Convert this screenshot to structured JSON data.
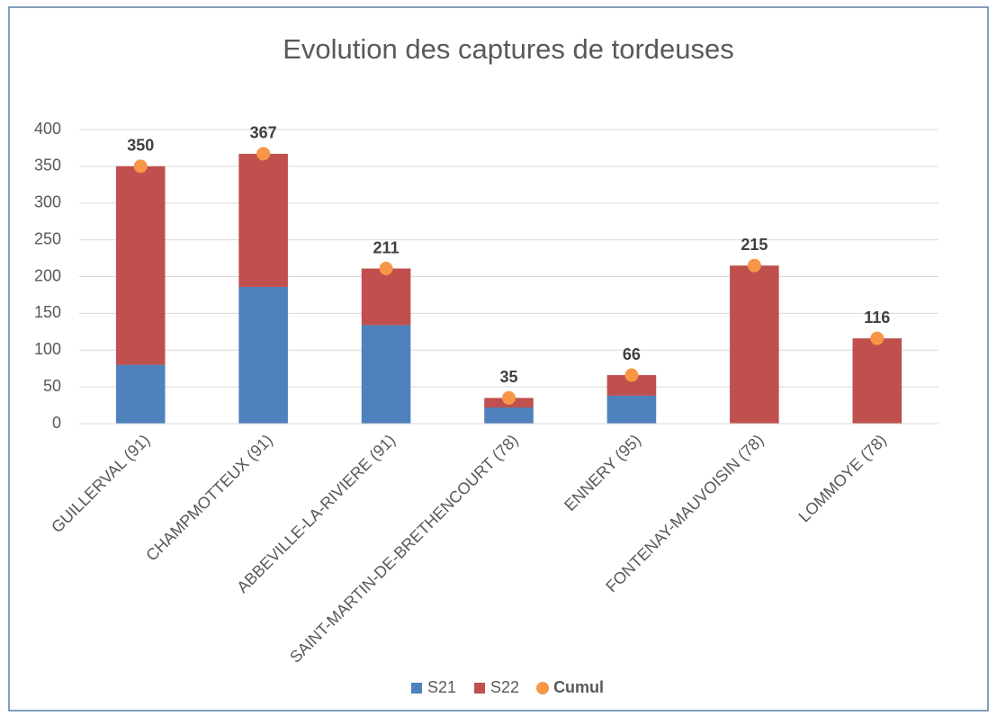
{
  "chart_data": {
    "type": "bar",
    "stacked": true,
    "title": "Evolution des captures de tordeuses",
    "categories": [
      "GUILLERVAL (91)",
      "CHAMPMOTTEUX (91)",
      "ABBEVILLE-LA-RIVIERE (91)",
      "SAINT-MARTIN-DE-BRETHENCOURT (78)",
      "ENNERY (95)",
      "FONTENAY-MAUVOISIN (78)",
      "LOMMOYE (78)"
    ],
    "series": [
      {
        "name": "S21",
        "color": "#4f81bd",
        "values": [
          80,
          186,
          134,
          22,
          38,
          0,
          0
        ]
      },
      {
        "name": "S22",
        "color": "#c0504d",
        "values": [
          270,
          181,
          77,
          13,
          28,
          215,
          116
        ]
      },
      {
        "name": "Cumul",
        "type": "scatter",
        "color": "#f79646",
        "values": [
          350,
          367,
          211,
          35,
          66,
          215,
          116
        ]
      }
    ],
    "ylim": [
      0,
      400
    ],
    "yticks": [
      0,
      50,
      100,
      150,
      200,
      250,
      300,
      350,
      400
    ],
    "grid": true,
    "legend": "bottom"
  }
}
